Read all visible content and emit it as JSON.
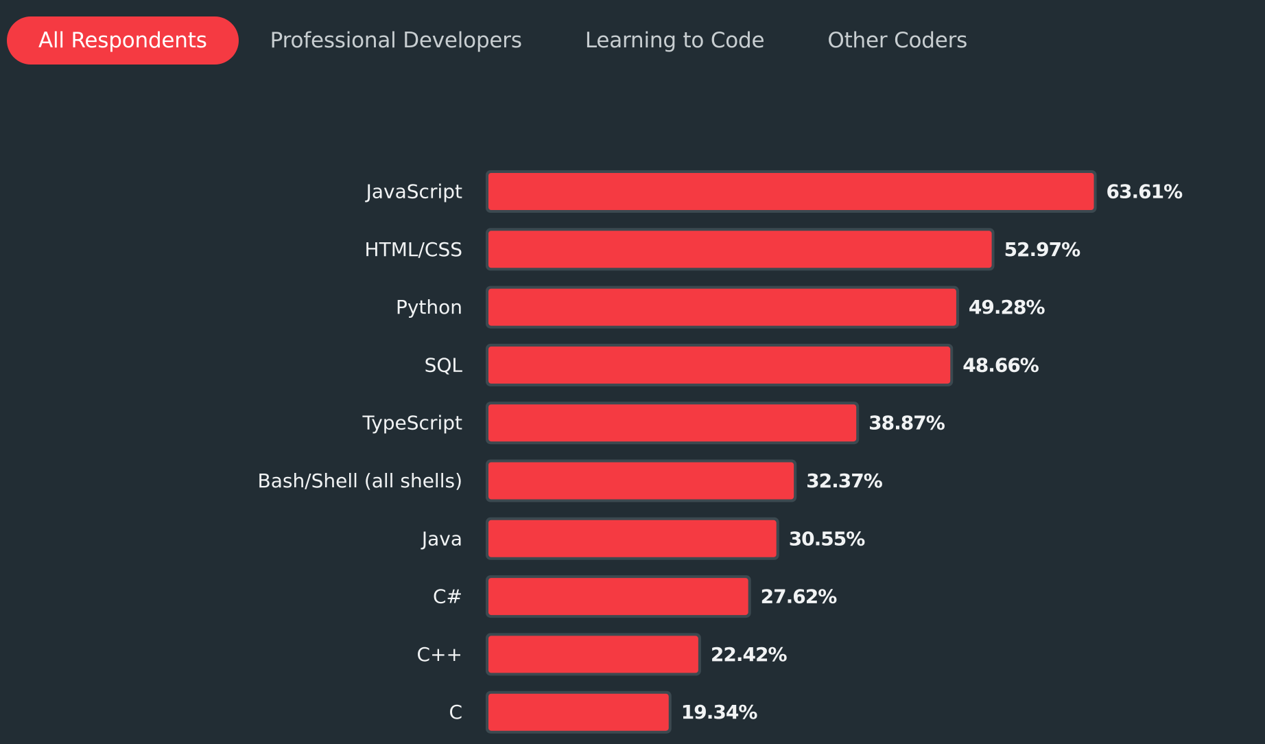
{
  "tabs": [
    {
      "label": "All Respondents",
      "active": true
    },
    {
      "label": "Professional Developers",
      "active": false
    },
    {
      "label": "Learning to Code",
      "active": false
    },
    {
      "label": "Other Coders",
      "active": false
    }
  ],
  "colors": {
    "background": "#222d34",
    "accent": "#f53a42",
    "bar_frame": "#3c4950",
    "text": "#f1f3f4",
    "tab_text": "#c8ced1"
  },
  "chart_data": {
    "type": "bar",
    "orientation": "horizontal",
    "categories": [
      "JavaScript",
      "HTML/CSS",
      "Python",
      "SQL",
      "TypeScript",
      "Bash/Shell (all shells)",
      "Java",
      "C#",
      "C++",
      "C"
    ],
    "values": [
      63.61,
      52.97,
      49.28,
      48.66,
      38.87,
      32.37,
      30.55,
      27.62,
      22.42,
      19.34
    ],
    "value_labels": [
      "63.61%",
      "52.97%",
      "49.28%",
      "48.66%",
      "38.87%",
      "32.37%",
      "30.55%",
      "27.62%",
      "22.42%",
      "19.34%"
    ],
    "title": "",
    "xlabel": "",
    "ylabel": "",
    "grid": false,
    "legend": "none"
  }
}
